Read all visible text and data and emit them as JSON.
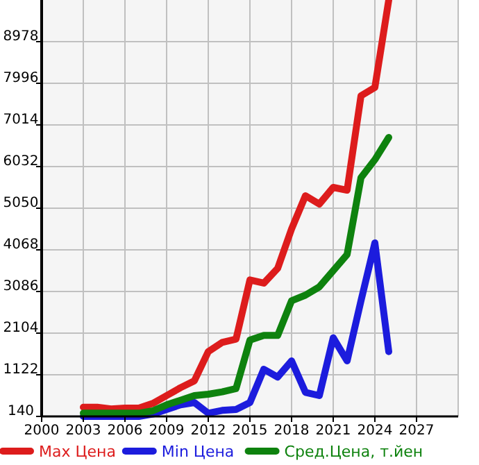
{
  "chart_data": {
    "type": "line",
    "x": [
      2003,
      2004,
      2005,
      2006,
      2007,
      2008,
      2009,
      2010,
      2011,
      2012,
      2013,
      2014,
      2015,
      2016,
      2017,
      2018,
      2019,
      2020,
      2021,
      2022,
      2023,
      2024,
      2025
    ],
    "series": [
      {
        "name": "Max Цена",
        "color": "#dd1c1c",
        "values": [
          358,
          358,
          315,
          336,
          336,
          445,
          631,
          817,
          980,
          1668,
          1886,
          1962,
          3359,
          3283,
          3632,
          4560,
          5344,
          5148,
          5541,
          5475,
          7701,
          7897,
          9960
        ]
      },
      {
        "name": "Min Цена",
        "color": "#1c1cdd",
        "values": [
          140,
          140,
          140,
          140,
          140,
          195,
          304,
          413,
          467,
          216,
          282,
          304,
          467,
          1253,
          1067,
          1449,
          707,
          631,
          1995,
          1449,
          2868,
          4232,
          1668
        ]
      },
      {
        "name": "Сред.Цена, т.йен",
        "color": "#0e820e",
        "values": [
          216,
          216,
          216,
          216,
          216,
          271,
          413,
          522,
          631,
          664,
          718,
          795,
          1940,
          2050,
          2050,
          2868,
          3000,
          3195,
          3577,
          3959,
          5770,
          6195,
          6719
        ]
      }
    ],
    "xlim": [
      2000,
      2030
    ],
    "xticks": [
      2000,
      2003,
      2006,
      2009,
      2012,
      2015,
      2018,
      2021,
      2024,
      2027
    ],
    "ylim": [
      140,
      9960
    ],
    "yticks": [
      140,
      1122,
      2104,
      3086,
      4068,
      5050,
      6032,
      7014,
      7996,
      8978
    ],
    "grid": true,
    "legend": "bottom",
    "marker": "none",
    "line_style": "solid"
  }
}
